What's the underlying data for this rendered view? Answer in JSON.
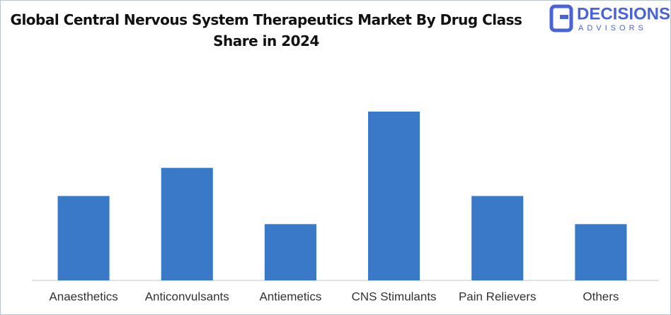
{
  "chart_data": {
    "type": "bar",
    "title": "Global Central Nervous System Therapeutics Market By Drug Class Share in 2024",
    "categories": [
      "Anaesthetics",
      "Anticonvulsants",
      "Antiemetics",
      "CNS Stimulants",
      "Pain Relievers",
      "Others"
    ],
    "values": [
      15,
      20,
      10,
      30,
      15,
      10
    ],
    "color": "#3a78c8",
    "ylim": [
      0,
      30
    ]
  },
  "logo": {
    "name": "DECISIONS",
    "tagline": "ADVISORS"
  }
}
